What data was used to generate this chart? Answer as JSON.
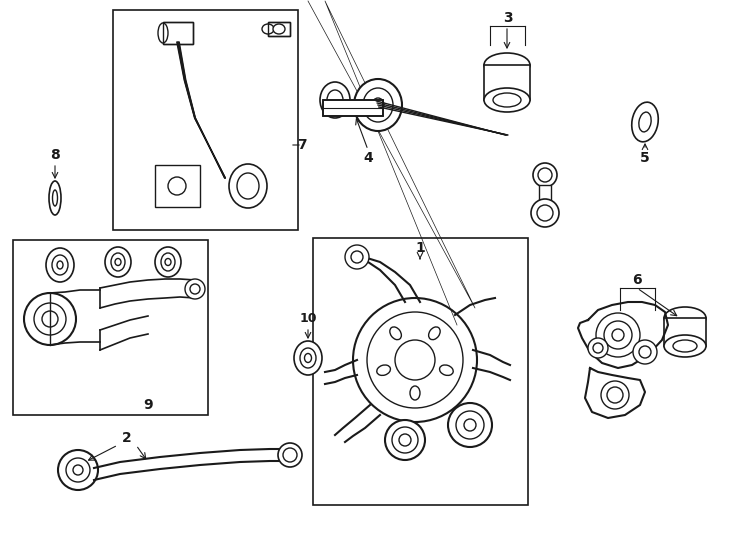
{
  "bg_color": "#ffffff",
  "line_color": "#1a1a1a",
  "fig_width": 7.34,
  "fig_height": 5.4,
  "dpi": 100,
  "xlim": [
    0,
    734
  ],
  "ylim": [
    0,
    540
  ]
}
